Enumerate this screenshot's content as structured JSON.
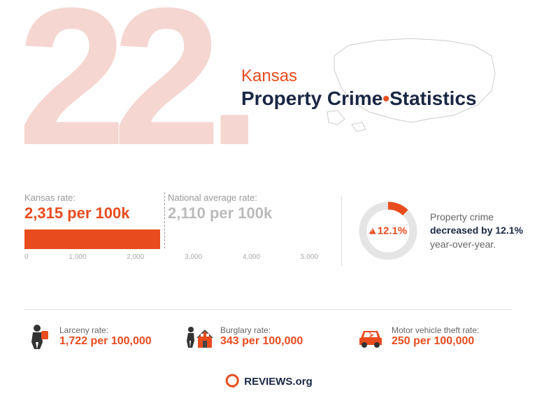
{
  "rank": "22.",
  "state": "Kansas",
  "title_prefix": "Property Crime",
  "title_suffix": "Statistics",
  "kansas_rate": {
    "label": "Kansas rate:",
    "value": "2,315 per 100k",
    "numeric": 2315
  },
  "national_rate": {
    "label": "National average rate:",
    "value": "2,110 per 100k",
    "numeric": 2110
  },
  "bar_chart": {
    "max": 5000,
    "bar_value": 2315,
    "ticks": [
      "0",
      "1,000",
      "2,000",
      "3,000",
      "4,000",
      "5,000"
    ],
    "bar_color": "#e84c1e",
    "dash_at": 2315
  },
  "decrease": {
    "percent": "12.1%",
    "percent_numeric": 12.1,
    "text_before": "Property crime ",
    "text_bold": "decreased by 12.1%",
    "text_after": " year-over-year.",
    "donut_fill": "#e84c1e",
    "donut_track": "#e5e5e5"
  },
  "stats": [
    {
      "icon": "larceny",
      "label": "Larceny rate:",
      "value": "1,722 per 100,000"
    },
    {
      "icon": "burglary",
      "label": "Burglary rate:",
      "value": "343 per 100,000"
    },
    {
      "icon": "vehicle",
      "label": "Motor vehicle theft rate:",
      "value": "250 per 100,000"
    }
  ],
  "footer": "REVIEWS.org",
  "colors": {
    "primary": "#e84c1e",
    "dark": "#1a2744",
    "pale": "#f5d6d0"
  }
}
